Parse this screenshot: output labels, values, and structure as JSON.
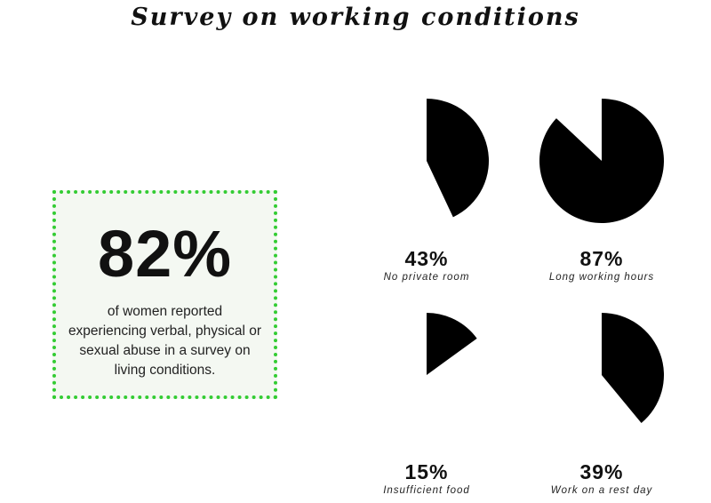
{
  "title": "Survey on working conditions",
  "callout": {
    "value": "82%",
    "description": "of women reported experiencing verbal, physical or sexual abuse in a survey on living conditions."
  },
  "colors": {
    "pie_fill": "#000000",
    "callout_border": "#33cc33",
    "callout_background": "#f4f8f2"
  },
  "chart_data": {
    "type": "pie",
    "title": "Survey on working conditions",
    "items": [
      {
        "label": "No private room",
        "value": 43,
        "value_label": "43%"
      },
      {
        "label": "Long working hours",
        "value": 87,
        "value_label": "87%"
      },
      {
        "label": "Insufficient food",
        "value": 15,
        "value_label": "15%"
      },
      {
        "label": "Work on a rest day",
        "value": 39,
        "value_label": "39%"
      }
    ]
  }
}
